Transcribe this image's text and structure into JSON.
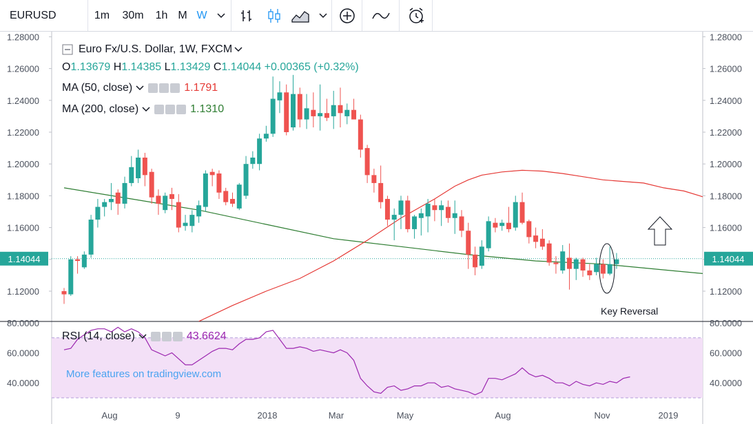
{
  "toolbar": {
    "symbol": "EURUSD",
    "timeframes": [
      "1m",
      "30m",
      "1h",
      "M",
      "W"
    ],
    "active_timeframe": "W",
    "icons": [
      "chevron-down-icon",
      "bar-chart-icon",
      "candles-icon",
      "area-chart-icon",
      "chevron-down-icon",
      "add-indicator-icon",
      "compare-icon",
      "alert-icon"
    ]
  },
  "legend": {
    "collapse_icon": "minus-square-icon",
    "title": "Euro Fx/U.S. Dollar, 1W, FXCM",
    "o_label": "O",
    "o": "1.13679",
    "h_label": "H",
    "h": "1.14385",
    "l_label": "L",
    "l": "1.13429",
    "c_label": "C",
    "c": "1.14044",
    "change": "+0.00365 (+0.32%)",
    "ma50_label": "MA (50, close)",
    "ma50_value": "1.1791",
    "ma200_label": "MA (200, close)",
    "ma200_value": "1.1310",
    "rsi_label": "RSI (14, close)",
    "rsi_value": "43.6624"
  },
  "watermark": "More features on tradingview.com",
  "annotation": "Key Reversal",
  "colors": {
    "up": "#26a69a",
    "down": "#ef5350",
    "ma50": "#e53935",
    "ma200": "#2e7d32",
    "rsi": "#9c27b0",
    "rsi_band": "#f3e0f7",
    "price_line": "#26a69a"
  },
  "chart_data": [
    {
      "type": "candlestick",
      "title": "Euro Fx/U.S. Dollar, 1W, FXCM",
      "ylim": [
        1.11,
        1.28
      ],
      "yticks": [
        "1.12000",
        "1.14000",
        "1.16000",
        "1.18000",
        "1.20000",
        "1.22000",
        "1.24000",
        "1.26000",
        "1.28000"
      ],
      "xticks": [
        "Aug",
        "9",
        "2018",
        "Mar",
        "May",
        "Aug",
        "Nov",
        "2019"
      ],
      "last_price": "1.14044",
      "candles": [
        {
          "o": 1.12,
          "h": 1.122,
          "l": 1.112,
          "c": 1.118
        },
        {
          "o": 1.118,
          "h": 1.142,
          "l": 1.117,
          "c": 1.14
        },
        {
          "o": 1.14,
          "h": 1.142,
          "l": 1.131,
          "c": 1.139
        },
        {
          "o": 1.135,
          "h": 1.145,
          "l": 1.134,
          "c": 1.143
        },
        {
          "o": 1.143,
          "h": 1.168,
          "l": 1.141,
          "c": 1.165
        },
        {
          "o": 1.165,
          "h": 1.178,
          "l": 1.16,
          "c": 1.173
        },
        {
          "o": 1.173,
          "h": 1.178,
          "l": 1.167,
          "c": 1.176
        },
        {
          "o": 1.176,
          "h": 1.188,
          "l": 1.171,
          "c": 1.178
        },
        {
          "o": 1.182,
          "h": 1.184,
          "l": 1.168,
          "c": 1.175
        },
        {
          "o": 1.175,
          "h": 1.192,
          "l": 1.172,
          "c": 1.188
        },
        {
          "o": 1.188,
          "h": 1.205,
          "l": 1.186,
          "c": 1.198
        },
        {
          "o": 1.191,
          "h": 1.209,
          "l": 1.188,
          "c": 1.204
        },
        {
          "o": 1.204,
          "h": 1.207,
          "l": 1.186,
          "c": 1.193
        },
        {
          "o": 1.195,
          "h": 1.197,
          "l": 1.175,
          "c": 1.179
        },
        {
          "o": 1.18,
          "h": 1.184,
          "l": 1.168,
          "c": 1.175
        },
        {
          "o": 1.171,
          "h": 1.182,
          "l": 1.169,
          "c": 1.18
        },
        {
          "o": 1.181,
          "h": 1.185,
          "l": 1.171,
          "c": 1.178
        },
        {
          "o": 1.176,
          "h": 1.181,
          "l": 1.157,
          "c": 1.16
        },
        {
          "o": 1.161,
          "h": 1.168,
          "l": 1.158,
          "c": 1.163
        },
        {
          "o": 1.161,
          "h": 1.171,
          "l": 1.157,
          "c": 1.168
        },
        {
          "o": 1.167,
          "h": 1.177,
          "l": 1.163,
          "c": 1.174
        },
        {
          "o": 1.173,
          "h": 1.196,
          "l": 1.17,
          "c": 1.194
        },
        {
          "o": 1.195,
          "h": 1.197,
          "l": 1.186,
          "c": 1.193
        },
        {
          "o": 1.194,
          "h": 1.196,
          "l": 1.178,
          "c": 1.182
        },
        {
          "o": 1.183,
          "h": 1.185,
          "l": 1.174,
          "c": 1.176
        },
        {
          "o": 1.178,
          "h": 1.182,
          "l": 1.173,
          "c": 1.175
        },
        {
          "o": 1.172,
          "h": 1.188,
          "l": 1.171,
          "c": 1.187
        },
        {
          "o": 1.18,
          "h": 1.205,
          "l": 1.178,
          "c": 1.2
        },
        {
          "o": 1.2,
          "h": 1.208,
          "l": 1.197,
          "c": 1.204
        },
        {
          "o": 1.2,
          "h": 1.219,
          "l": 1.196,
          "c": 1.216
        },
        {
          "o": 1.216,
          "h": 1.224,
          "l": 1.214,
          "c": 1.219
        },
        {
          "o": 1.219,
          "h": 1.255,
          "l": 1.217,
          "c": 1.241
        },
        {
          "o": 1.24,
          "h": 1.252,
          "l": 1.232,
          "c": 1.245
        },
        {
          "o": 1.245,
          "h": 1.25,
          "l": 1.218,
          "c": 1.22
        },
        {
          "o": 1.223,
          "h": 1.256,
          "l": 1.221,
          "c": 1.244
        },
        {
          "o": 1.244,
          "h": 1.248,
          "l": 1.223,
          "c": 1.228
        },
        {
          "o": 1.228,
          "h": 1.244,
          "l": 1.222,
          "c": 1.235
        },
        {
          "o": 1.234,
          "h": 1.245,
          "l": 1.223,
          "c": 1.23
        },
        {
          "o": 1.23,
          "h": 1.25,
          "l": 1.221,
          "c": 1.232
        },
        {
          "o": 1.232,
          "h": 1.241,
          "l": 1.227,
          "c": 1.229
        },
        {
          "o": 1.23,
          "h": 1.246,
          "l": 1.222,
          "c": 1.237
        },
        {
          "o": 1.237,
          "h": 1.248,
          "l": 1.223,
          "c": 1.232
        },
        {
          "o": 1.23,
          "h": 1.238,
          "l": 1.225,
          "c": 1.234
        },
        {
          "o": 1.234,
          "h": 1.241,
          "l": 1.228,
          "c": 1.228
        },
        {
          "o": 1.228,
          "h": 1.231,
          "l": 1.204,
          "c": 1.209
        },
        {
          "o": 1.21,
          "h": 1.212,
          "l": 1.188,
          "c": 1.193
        },
        {
          "o": 1.193,
          "h": 1.197,
          "l": 1.182,
          "c": 1.188
        },
        {
          "o": 1.188,
          "h": 1.199,
          "l": 1.172,
          "c": 1.176
        },
        {
          "o": 1.178,
          "h": 1.18,
          "l": 1.161,
          "c": 1.165
        },
        {
          "o": 1.165,
          "h": 1.172,
          "l": 1.152,
          "c": 1.168
        },
        {
          "o": 1.168,
          "h": 1.18,
          "l": 1.159,
          "c": 1.177
        },
        {
          "o": 1.177,
          "h": 1.18,
          "l": 1.157,
          "c": 1.159
        },
        {
          "o": 1.159,
          "h": 1.168,
          "l": 1.153,
          "c": 1.167
        },
        {
          "o": 1.166,
          "h": 1.172,
          "l": 1.155,
          "c": 1.169
        },
        {
          "o": 1.167,
          "h": 1.178,
          "l": 1.157,
          "c": 1.175
        },
        {
          "o": 1.174,
          "h": 1.178,
          "l": 1.164,
          "c": 1.171
        },
        {
          "o": 1.171,
          "h": 1.177,
          "l": 1.161,
          "c": 1.174
        },
        {
          "o": 1.173,
          "h": 1.177,
          "l": 1.163,
          "c": 1.166
        },
        {
          "o": 1.166,
          "h": 1.177,
          "l": 1.156,
          "c": 1.169
        },
        {
          "o": 1.167,
          "h": 1.171,
          "l": 1.154,
          "c": 1.158
        },
        {
          "o": 1.158,
          "h": 1.163,
          "l": 1.134,
          "c": 1.143
        },
        {
          "o": 1.143,
          "h": 1.148,
          "l": 1.13,
          "c": 1.135
        },
        {
          "o": 1.136,
          "h": 1.152,
          "l": 1.134,
          "c": 1.148
        },
        {
          "o": 1.147,
          "h": 1.167,
          "l": 1.145,
          "c": 1.164
        },
        {
          "o": 1.163,
          "h": 1.166,
          "l": 1.157,
          "c": 1.16
        },
        {
          "o": 1.161,
          "h": 1.165,
          "l": 1.158,
          "c": 1.163
        },
        {
          "o": 1.163,
          "h": 1.173,
          "l": 1.157,
          "c": 1.159
        },
        {
          "o": 1.16,
          "h": 1.18,
          "l": 1.158,
          "c": 1.176
        },
        {
          "o": 1.176,
          "h": 1.182,
          "l": 1.162,
          "c": 1.163
        },
        {
          "o": 1.164,
          "h": 1.165,
          "l": 1.15,
          "c": 1.154
        },
        {
          "o": 1.155,
          "h": 1.16,
          "l": 1.147,
          "c": 1.151
        },
        {
          "o": 1.153,
          "h": 1.159,
          "l": 1.146,
          "c": 1.148
        },
        {
          "o": 1.15,
          "h": 1.152,
          "l": 1.136,
          "c": 1.138
        },
        {
          "o": 1.138,
          "h": 1.142,
          "l": 1.131,
          "c": 1.137
        },
        {
          "o": 1.133,
          "h": 1.149,
          "l": 1.131,
          "c": 1.145
        },
        {
          "o": 1.141,
          "h": 1.15,
          "l": 1.121,
          "c": 1.134
        },
        {
          "o": 1.134,
          "h": 1.141,
          "l": 1.127,
          "c": 1.14
        },
        {
          "o": 1.14,
          "h": 1.141,
          "l": 1.129,
          "c": 1.133
        },
        {
          "o": 1.133,
          "h": 1.137,
          "l": 1.127,
          "c": 1.13
        },
        {
          "o": 1.132,
          "h": 1.141,
          "l": 1.13,
          "c": 1.137
        },
        {
          "o": 1.137,
          "h": 1.14,
          "l": 1.128,
          "c": 1.131
        },
        {
          "o": 1.131,
          "h": 1.148,
          "l": 1.13,
          "c": 1.137
        },
        {
          "o": 1.137,
          "h": 1.144,
          "l": 1.134,
          "c": 1.14
        }
      ],
      "ma50": [
        {
          "i": 20,
          "v": 1.101
        },
        {
          "i": 25,
          "v": 1.111
        },
        {
          "i": 30,
          "v": 1.12
        },
        {
          "i": 35,
          "v": 1.128
        },
        {
          "i": 40,
          "v": 1.139
        },
        {
          "i": 45,
          "v": 1.152
        },
        {
          "i": 50,
          "v": 1.166
        },
        {
          "i": 55,
          "v": 1.178
        },
        {
          "i": 58,
          "v": 1.186
        },
        {
          "i": 60,
          "v": 1.19
        },
        {
          "i": 62,
          "v": 1.193
        },
        {
          "i": 65,
          "v": 1.195
        },
        {
          "i": 68,
          "v": 1.196
        },
        {
          "i": 71,
          "v": 1.1955
        },
        {
          "i": 74,
          "v": 1.194
        },
        {
          "i": 77,
          "v": 1.192
        },
        {
          "i": 80,
          "v": 1.19
        },
        {
          "i": 83,
          "v": 1.189
        },
        {
          "i": 86,
          "v": 1.188
        },
        {
          "i": 89,
          "v": 1.185
        },
        {
          "i": 92,
          "v": 1.183
        },
        {
          "i": 95,
          "v": 1.1791
        }
      ],
      "ma200": [
        {
          "i": 0,
          "v": 1.185
        },
        {
          "i": 10,
          "v": 1.178
        },
        {
          "i": 20,
          "v": 1.171
        },
        {
          "i": 30,
          "v": 1.162
        },
        {
          "i": 40,
          "v": 1.153
        },
        {
          "i": 50,
          "v": 1.148
        },
        {
          "i": 60,
          "v": 1.143
        },
        {
          "i": 70,
          "v": 1.139
        },
        {
          "i": 80,
          "v": 1.137
        },
        {
          "i": 90,
          "v": 1.133
        },
        {
          "i": 95,
          "v": 1.131
        }
      ]
    },
    {
      "type": "line",
      "title": "RSI (14, close)",
      "ylim": [
        30,
        80
      ],
      "yticks": [
        "40.0000",
        "60.0000",
        "80.0000"
      ],
      "bands": [
        30,
        70
      ],
      "values": [
        62,
        63,
        69,
        72,
        75,
        76,
        76,
        74,
        77,
        74,
        76,
        74,
        70,
        62,
        60,
        58,
        60,
        56,
        52,
        52,
        55,
        58,
        61,
        63,
        63,
        62,
        66,
        69,
        69,
        70,
        74,
        75,
        69,
        63,
        63,
        64,
        63,
        61,
        62,
        61,
        60,
        62,
        60,
        55,
        43,
        38,
        34,
        33,
        37,
        38,
        35,
        36,
        38,
        38,
        40,
        40,
        37,
        38,
        36,
        35,
        34,
        32,
        34,
        43,
        43,
        42,
        44,
        46,
        50,
        46,
        44,
        45,
        43,
        40,
        40,
        38,
        41,
        39,
        38,
        40,
        39,
        41,
        40,
        43,
        44
      ]
    }
  ]
}
